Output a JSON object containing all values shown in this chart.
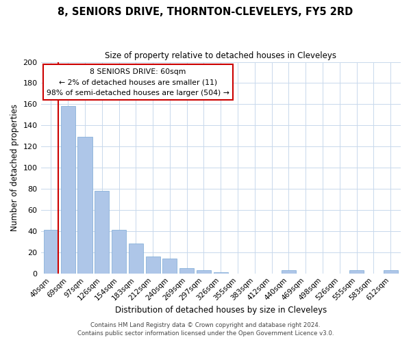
{
  "title": "8, SENIORS DRIVE, THORNTON-CLEVELEYS, FY5 2RD",
  "subtitle": "Size of property relative to detached houses in Cleveleys",
  "xlabel": "Distribution of detached houses by size in Cleveleys",
  "ylabel": "Number of detached properties",
  "bar_labels": [
    "40sqm",
    "69sqm",
    "97sqm",
    "126sqm",
    "154sqm",
    "183sqm",
    "212sqm",
    "240sqm",
    "269sqm",
    "297sqm",
    "326sqm",
    "355sqm",
    "383sqm",
    "412sqm",
    "440sqm",
    "469sqm",
    "498sqm",
    "526sqm",
    "555sqm",
    "583sqm",
    "612sqm"
  ],
  "bar_values": [
    41,
    158,
    129,
    78,
    41,
    28,
    16,
    14,
    5,
    3,
    1,
    0,
    0,
    0,
    3,
    0,
    0,
    0,
    3,
    0,
    3
  ],
  "bar_color": "#aec6e8",
  "bar_edge_color": "#7aa8d4",
  "vline_color": "#cc0000",
  "vline_x_index": 0.5,
  "ylim": [
    0,
    200
  ],
  "yticks": [
    0,
    20,
    40,
    60,
    80,
    100,
    120,
    140,
    160,
    180,
    200
  ],
  "annotation_title": "8 SENIORS DRIVE: 60sqm",
  "annotation_line1": "← 2% of detached houses are smaller (11)",
  "annotation_line2": "98% of semi-detached houses are larger (504) →",
  "annotation_box_color": "#ffffff",
  "annotation_box_edge": "#cc0000",
  "footer1": "Contains HM Land Registry data © Crown copyright and database right 2024.",
  "footer2": "Contains public sector information licensed under the Open Government Licence v3.0.",
  "background_color": "#ffffff",
  "grid_color": "#c8d8ec"
}
